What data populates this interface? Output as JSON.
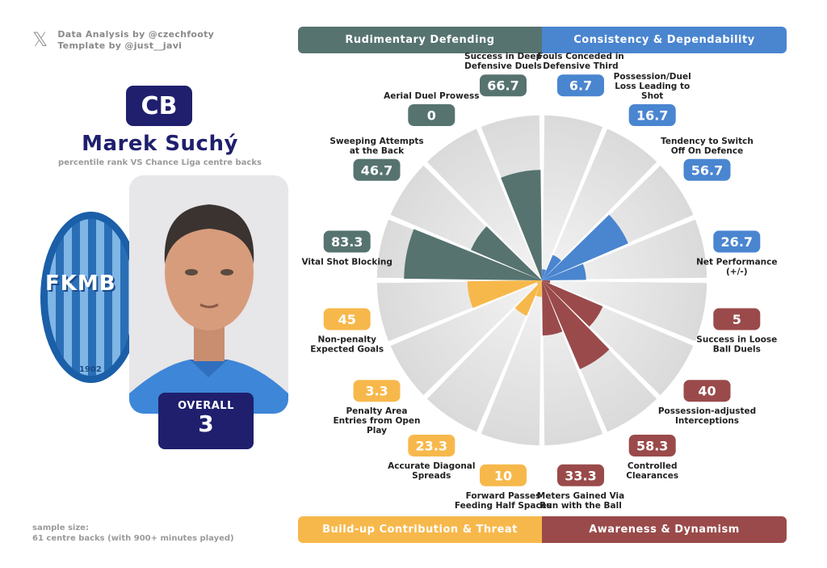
{
  "credits": {
    "icon": "x-logo-icon",
    "line1": "Data Analysis by @czechfooty",
    "line2": "Template by @just__javi"
  },
  "player": {
    "position": "CB",
    "name": "Marek Suchý",
    "subtitle": "percentile rank VS Chance Liga centre backs",
    "overall_label": "OVERALL",
    "overall_value": "3"
  },
  "club_logo": {
    "text": "FKMB",
    "year": "1902"
  },
  "sample": {
    "line1": "sample size:",
    "line2": "61 centre backs (with 900+ minutes played)"
  },
  "categories": {
    "top_left": "Rudimentary Defending",
    "top_right": "Consistency & Dependability",
    "bottom_left": "Build-up Contribution & Threat",
    "bottom_right": "Awareness & Dynamism"
  },
  "colors": {
    "rudimentary": "#567370",
    "consistency": "#4a85d0",
    "buildup": "#f7b84b",
    "awareness": "#9a4a4a",
    "navy": "#1f1f6e"
  },
  "chart_data": {
    "type": "radar-bar",
    "title": "Marek Suchý",
    "subtitle": "percentile rank VS Chance Liga centre backs",
    "rlim": [
      0,
      100
    ],
    "metrics": [
      {
        "label": "Fouls Conceded in Defensive Third",
        "value": 6.7,
        "display": "6.7",
        "group": "consistency"
      },
      {
        "label": "Possession/Duel Loss Leading to Shot",
        "value": 16.7,
        "display": "16.7",
        "group": "consistency"
      },
      {
        "label": "Tendency to Switch Off On Defence",
        "value": 56.7,
        "display": "56.7",
        "group": "consistency"
      },
      {
        "label": "Net Performance (+/-)",
        "value": 26.7,
        "display": "26.7",
        "group": "consistency"
      },
      {
        "label": "Success in Loose Ball Duels",
        "value": 5,
        "display": "5",
        "group": "awareness"
      },
      {
        "label": "Possession-adjusted Interceptions",
        "value": 40,
        "display": "40",
        "group": "awareness"
      },
      {
        "label": "Controlled Clearances",
        "value": 58.3,
        "display": "58.3",
        "group": "awareness"
      },
      {
        "label": "Meters Gained Via Run with the Ball",
        "value": 33.3,
        "display": "33.3",
        "group": "awareness"
      },
      {
        "label": "Forward Passes Feeding Half Spaces",
        "value": 10,
        "display": "10",
        "group": "buildup"
      },
      {
        "label": "Accurate Diagonal Spreads",
        "value": 23.3,
        "display": "23.3",
        "group": "buildup"
      },
      {
        "label": "Penalty Area Entries from Open Play",
        "value": 3.3,
        "display": "3.3",
        "group": "buildup"
      },
      {
        "label": "Non-penalty Expected Goals",
        "value": 45,
        "display": "45",
        "group": "buildup"
      },
      {
        "label": "Vital Shot Blocking",
        "value": 83.3,
        "display": "83.3",
        "group": "rudimentary"
      },
      {
        "label": "Sweeping Attempts at the Back",
        "value": 46.7,
        "display": "46.7",
        "group": "rudimentary"
      },
      {
        "label": "Aerial Duel Prowess",
        "value": 0,
        "display": "0",
        "group": "rudimentary"
      },
      {
        "label": "Success in Deep Defensive Duels",
        "value": 66.7,
        "display": "66.7",
        "group": "rudimentary"
      }
    ]
  }
}
